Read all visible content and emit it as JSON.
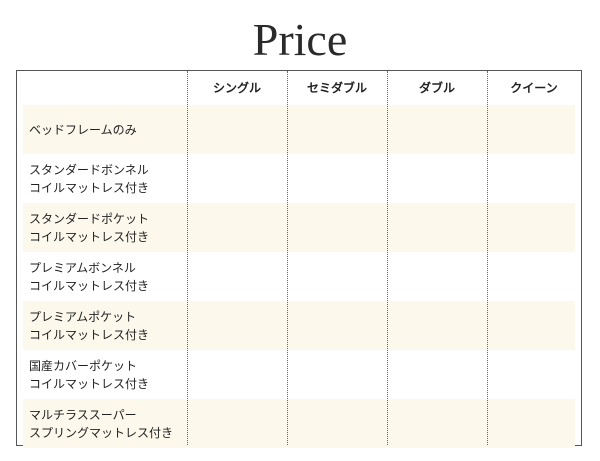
{
  "title": "Price",
  "columns": [
    "シングル",
    "セミダブル",
    "ダブル",
    "クイーン"
  ],
  "rows": [
    {
      "line1": "ベッドフレームのみ",
      "line2": ""
    },
    {
      "line1": "スタンダードボンネル",
      "line2": "コイルマットレス付き"
    },
    {
      "line1": "スタンダードポケット",
      "line2": "コイルマットレス付き"
    },
    {
      "line1": "プレミアムボンネル",
      "line2": "コイルマットレス付き"
    },
    {
      "line1": "プレミアムポケット",
      "line2": "コイルマットレス付き"
    },
    {
      "line1": "国産カバーポケット",
      "line2": "コイルマットレス付き"
    },
    {
      "line1": "マルチラススーパー",
      "line2": "スプリングマットレス付き"
    }
  ],
  "colors": {
    "row_shade": "#fcf8ec",
    "border": "#555555"
  }
}
